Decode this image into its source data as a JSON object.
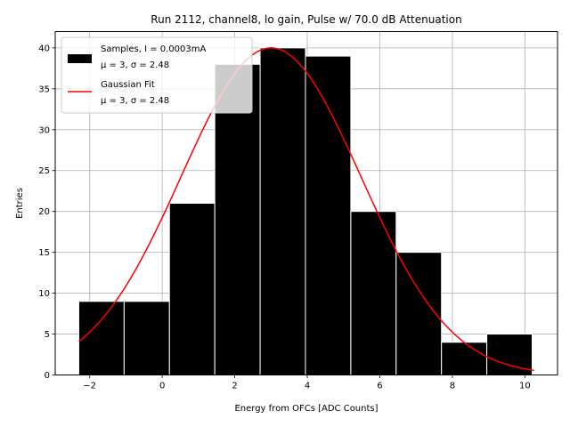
{
  "chart_data": {
    "type": "bar",
    "title": "Run 2112, channel8, lo gain, Pulse w/ 70.0 dB Attenuation",
    "xlabel": "Energy from OFCs [ADC Counts]",
    "ylabel": "Entries",
    "xlim": [
      -2.95,
      10.9
    ],
    "ylim": [
      0,
      42
    ],
    "xticks": [
      -2,
      0,
      2,
      4,
      6,
      8,
      10
    ],
    "yticks": [
      0,
      5,
      10,
      15,
      20,
      25,
      30,
      35,
      40
    ],
    "grid": true,
    "legend_position": "top-left",
    "bins": [
      {
        "x0": -2.3,
        "x1": -1.05,
        "count": 9
      },
      {
        "x0": -1.05,
        "x1": 0.2,
        "count": 9
      },
      {
        "x0": 0.2,
        "x1": 1.45,
        "count": 21
      },
      {
        "x0": 1.45,
        "x1": 2.7,
        "count": 38
      },
      {
        "x0": 2.7,
        "x1": 3.95,
        "count": 40
      },
      {
        "x0": 3.95,
        "x1": 5.2,
        "count": 39
      },
      {
        "x0": 5.2,
        "x1": 6.45,
        "count": 20
      },
      {
        "x0": 6.45,
        "x1": 7.7,
        "count": 15
      },
      {
        "x0": 7.7,
        "x1": 8.95,
        "count": 4
      },
      {
        "x0": 8.95,
        "x1": 10.2,
        "count": 5
      }
    ],
    "series": [
      {
        "name": "Samples, I = 0.0003mA",
        "stats": "μ = 3, σ = 2.48",
        "kind": "histogram",
        "color": "#000000"
      },
      {
        "name": "Gaussian Fit",
        "stats": "μ = 3, σ = 2.48",
        "kind": "line",
        "color": "#ff0000",
        "mu": 3,
        "sigma": 2.48,
        "amplitude": 40,
        "x_range": [
          -2.3,
          10.25
        ]
      }
    ]
  }
}
